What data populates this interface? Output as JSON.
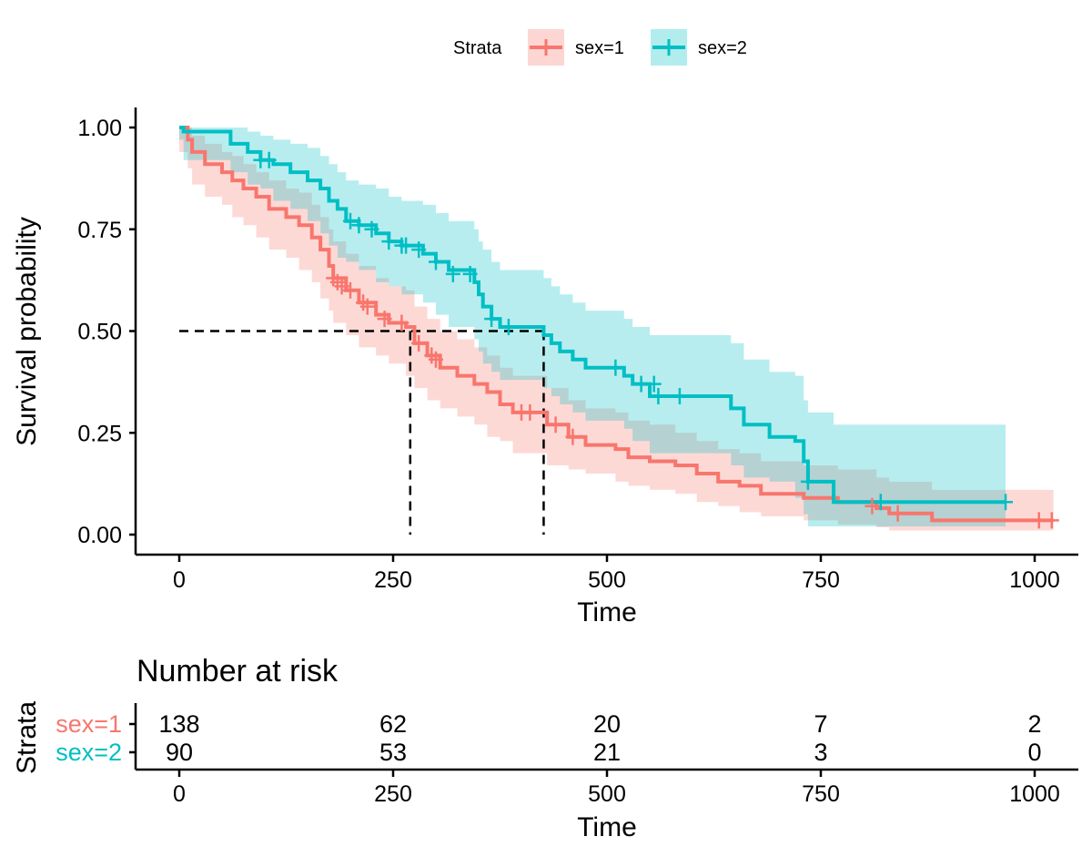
{
  "chart_data": {
    "type": "line",
    "subtype": "kaplan-meier step",
    "xlabel": "Time",
    "ylabel": "Survival probability",
    "xlim": [
      -30,
      1050
    ],
    "ylim": [
      0,
      1
    ],
    "xticks": [
      0,
      250,
      500,
      750,
      1000
    ],
    "xtick_labels": [
      "0",
      "250",
      "500",
      "750",
      "1000"
    ],
    "yticks": [
      0,
      0.25,
      0.5,
      0.75,
      1.0
    ],
    "ytick_labels": [
      "0.00",
      "0.25",
      "0.50",
      "0.75",
      "1.00"
    ],
    "grid": false,
    "legend": {
      "title": "Strata",
      "placement": "top",
      "entries": [
        "sex=1",
        "sex=2"
      ]
    },
    "median_lines": {
      "y": 0.5,
      "x": [
        270,
        426
      ]
    },
    "series": [
      {
        "name": "sex=1",
        "color": "#F8766D",
        "fill": "#F8766D",
        "steps": [
          [
            0,
            1.0
          ],
          [
            10,
            0.97
          ],
          [
            15,
            0.94
          ],
          [
            30,
            0.91
          ],
          [
            50,
            0.89
          ],
          [
            62,
            0.87
          ],
          [
            75,
            0.85
          ],
          [
            90,
            0.83
          ],
          [
            105,
            0.8
          ],
          [
            125,
            0.78
          ],
          [
            140,
            0.76
          ],
          [
            155,
            0.73
          ],
          [
            165,
            0.7
          ],
          [
            175,
            0.66
          ],
          [
            180,
            0.63
          ],
          [
            195,
            0.6
          ],
          [
            210,
            0.57
          ],
          [
            230,
            0.54
          ],
          [
            245,
            0.52
          ],
          [
            265,
            0.51
          ],
          [
            275,
            0.47
          ],
          [
            290,
            0.44
          ],
          [
            305,
            0.41
          ],
          [
            325,
            0.39
          ],
          [
            345,
            0.37
          ],
          [
            360,
            0.35
          ],
          [
            375,
            0.32
          ],
          [
            390,
            0.3
          ],
          [
            430,
            0.27
          ],
          [
            455,
            0.24
          ],
          [
            475,
            0.22
          ],
          [
            510,
            0.21
          ],
          [
            525,
            0.19
          ],
          [
            550,
            0.18
          ],
          [
            580,
            0.17
          ],
          [
            605,
            0.15
          ],
          [
            630,
            0.13
          ],
          [
            655,
            0.12
          ],
          [
            680,
            0.1
          ],
          [
            730,
            0.09
          ],
          [
            770,
            0.08
          ],
          [
            815,
            0.065
          ],
          [
            830,
            0.052
          ],
          [
            880,
            0.035
          ],
          [
            1022,
            0.035
          ]
        ],
        "lower": [
          [
            0,
            1.0
          ],
          [
            10,
            0.94
          ],
          [
            15,
            0.9
          ],
          [
            30,
            0.86
          ],
          [
            50,
            0.83
          ],
          [
            62,
            0.81
          ],
          [
            75,
            0.78
          ],
          [
            90,
            0.76
          ],
          [
            105,
            0.73
          ],
          [
            125,
            0.7
          ],
          [
            140,
            0.68
          ],
          [
            155,
            0.65
          ],
          [
            165,
            0.62
          ],
          [
            175,
            0.58
          ],
          [
            180,
            0.55
          ],
          [
            195,
            0.52
          ],
          [
            210,
            0.49
          ],
          [
            230,
            0.46
          ],
          [
            245,
            0.44
          ],
          [
            265,
            0.42
          ],
          [
            275,
            0.39
          ],
          [
            290,
            0.36
          ],
          [
            305,
            0.33
          ],
          [
            325,
            0.31
          ],
          [
            345,
            0.29
          ],
          [
            360,
            0.27
          ],
          [
            375,
            0.24
          ],
          [
            390,
            0.23
          ],
          [
            430,
            0.2
          ],
          [
            455,
            0.17
          ],
          [
            475,
            0.16
          ],
          [
            510,
            0.15
          ],
          [
            525,
            0.13
          ],
          [
            550,
            0.12
          ],
          [
            580,
            0.11
          ],
          [
            605,
            0.1
          ],
          [
            630,
            0.08
          ],
          [
            655,
            0.07
          ],
          [
            680,
            0.055
          ],
          [
            730,
            0.045
          ],
          [
            770,
            0.035
          ],
          [
            815,
            0.025
          ],
          [
            830,
            0.018
          ],
          [
            880,
            0.01
          ],
          [
            1022,
            0.01
          ]
        ],
        "upper": [
          [
            0,
            1.0
          ],
          [
            10,
            1.0
          ],
          [
            15,
            0.98
          ],
          [
            30,
            0.96
          ],
          [
            50,
            0.94
          ],
          [
            62,
            0.93
          ],
          [
            75,
            0.91
          ],
          [
            90,
            0.89
          ],
          [
            105,
            0.87
          ],
          [
            125,
            0.85
          ],
          [
            140,
            0.84
          ],
          [
            155,
            0.81
          ],
          [
            165,
            0.78
          ],
          [
            175,
            0.75
          ],
          [
            180,
            0.72
          ],
          [
            195,
            0.69
          ],
          [
            210,
            0.66
          ],
          [
            230,
            0.63
          ],
          [
            245,
            0.61
          ],
          [
            265,
            0.6
          ],
          [
            275,
            0.56
          ],
          [
            290,
            0.53
          ],
          [
            305,
            0.5
          ],
          [
            325,
            0.48
          ],
          [
            345,
            0.46
          ],
          [
            360,
            0.44
          ],
          [
            375,
            0.41
          ],
          [
            390,
            0.39
          ],
          [
            430,
            0.36
          ],
          [
            455,
            0.33
          ],
          [
            475,
            0.31
          ],
          [
            510,
            0.3
          ],
          [
            525,
            0.28
          ],
          [
            550,
            0.27
          ],
          [
            580,
            0.25
          ],
          [
            605,
            0.23
          ],
          [
            630,
            0.21
          ],
          [
            655,
            0.2
          ],
          [
            680,
            0.18
          ],
          [
            730,
            0.17
          ],
          [
            770,
            0.16
          ],
          [
            815,
            0.14
          ],
          [
            830,
            0.13
          ],
          [
            880,
            0.11
          ],
          [
            1022,
            0.11
          ]
        ],
        "censored": [
          [
            180,
            0.63
          ],
          [
            185,
            0.62
          ],
          [
            190,
            0.61
          ],
          [
            200,
            0.6
          ],
          [
            215,
            0.57
          ],
          [
            220,
            0.56
          ],
          [
            240,
            0.53
          ],
          [
            260,
            0.52
          ],
          [
            280,
            0.47
          ],
          [
            295,
            0.44
          ],
          [
            300,
            0.43
          ],
          [
            400,
            0.3
          ],
          [
            410,
            0.3
          ],
          [
            440,
            0.27
          ],
          [
            460,
            0.24
          ],
          [
            810,
            0.07
          ],
          [
            840,
            0.052
          ],
          [
            1005,
            0.035
          ],
          [
            1020,
            0.035
          ]
        ]
      },
      {
        "name": "sex=2",
        "color": "#00BFC4",
        "fill": "#00BFC4",
        "steps": [
          [
            0,
            1.0
          ],
          [
            5,
            0.99
          ],
          [
            60,
            0.96
          ],
          [
            80,
            0.94
          ],
          [
            95,
            0.92
          ],
          [
            110,
            0.91
          ],
          [
            130,
            0.89
          ],
          [
            150,
            0.87
          ],
          [
            165,
            0.85
          ],
          [
            175,
            0.82
          ],
          [
            185,
            0.8
          ],
          [
            195,
            0.77
          ],
          [
            210,
            0.76
          ],
          [
            230,
            0.74
          ],
          [
            245,
            0.72
          ],
          [
            260,
            0.71
          ],
          [
            285,
            0.69
          ],
          [
            300,
            0.67
          ],
          [
            315,
            0.65
          ],
          [
            345,
            0.62
          ],
          [
            350,
            0.59
          ],
          [
            355,
            0.56
          ],
          [
            365,
            0.53
          ],
          [
            375,
            0.51
          ],
          [
            426,
            0.49
          ],
          [
            435,
            0.47
          ],
          [
            445,
            0.45
          ],
          [
            460,
            0.43
          ],
          [
            475,
            0.41
          ],
          [
            520,
            0.39
          ],
          [
            530,
            0.37
          ],
          [
            550,
            0.34
          ],
          [
            645,
            0.31
          ],
          [
            660,
            0.27
          ],
          [
            690,
            0.24
          ],
          [
            720,
            0.23
          ],
          [
            730,
            0.18
          ],
          [
            735,
            0.13
          ],
          [
            765,
            0.08
          ],
          [
            966,
            0.08
          ]
        ],
        "lower": [
          [
            0,
            1.0
          ],
          [
            5,
            0.97
          ],
          [
            60,
            0.92
          ],
          [
            80,
            0.89
          ],
          [
            95,
            0.86
          ],
          [
            110,
            0.85
          ],
          [
            130,
            0.82
          ],
          [
            150,
            0.8
          ],
          [
            165,
            0.77
          ],
          [
            175,
            0.74
          ],
          [
            185,
            0.71
          ],
          [
            195,
            0.68
          ],
          [
            210,
            0.67
          ],
          [
            230,
            0.65
          ],
          [
            245,
            0.62
          ],
          [
            260,
            0.61
          ],
          [
            285,
            0.59
          ],
          [
            300,
            0.57
          ],
          [
            315,
            0.54
          ],
          [
            345,
            0.51
          ],
          [
            350,
            0.48
          ],
          [
            355,
            0.45
          ],
          [
            365,
            0.42
          ],
          [
            375,
            0.4
          ],
          [
            426,
            0.38
          ],
          [
            435,
            0.36
          ],
          [
            445,
            0.34
          ],
          [
            460,
            0.32
          ],
          [
            475,
            0.3
          ],
          [
            520,
            0.28
          ],
          [
            530,
            0.26
          ],
          [
            550,
            0.23
          ],
          [
            645,
            0.2
          ],
          [
            660,
            0.17
          ],
          [
            690,
            0.14
          ],
          [
            720,
            0.13
          ],
          [
            730,
            0.09
          ],
          [
            735,
            0.05
          ],
          [
            765,
            0.02
          ],
          [
            966,
            0.02
          ]
        ],
        "upper": [
          [
            0,
            1.0
          ],
          [
            5,
            1.0
          ],
          [
            60,
            1.0
          ],
          [
            80,
            0.99
          ],
          [
            95,
            0.98
          ],
          [
            110,
            0.97
          ],
          [
            130,
            0.96
          ],
          [
            150,
            0.95
          ],
          [
            165,
            0.93
          ],
          [
            175,
            0.91
          ],
          [
            185,
            0.89
          ],
          [
            195,
            0.87
          ],
          [
            210,
            0.86
          ],
          [
            230,
            0.85
          ],
          [
            245,
            0.83
          ],
          [
            260,
            0.82
          ],
          [
            285,
            0.81
          ],
          [
            300,
            0.79
          ],
          [
            315,
            0.77
          ],
          [
            345,
            0.75
          ],
          [
            350,
            0.72
          ],
          [
            355,
            0.7
          ],
          [
            365,
            0.67
          ],
          [
            375,
            0.65
          ],
          [
            426,
            0.63
          ],
          [
            435,
            0.61
          ],
          [
            445,
            0.59
          ],
          [
            460,
            0.57
          ],
          [
            475,
            0.55
          ],
          [
            520,
            0.53
          ],
          [
            530,
            0.51
          ],
          [
            550,
            0.49
          ],
          [
            645,
            0.47
          ],
          [
            660,
            0.43
          ],
          [
            690,
            0.4
          ],
          [
            720,
            0.39
          ],
          [
            730,
            0.33
          ],
          [
            735,
            0.3
          ],
          [
            765,
            0.27
          ],
          [
            966,
            0.27
          ]
        ],
        "censored": [
          [
            95,
            0.92
          ],
          [
            105,
            0.92
          ],
          [
            200,
            0.77
          ],
          [
            210,
            0.76
          ],
          [
            225,
            0.75
          ],
          [
            245,
            0.72
          ],
          [
            260,
            0.71
          ],
          [
            265,
            0.71
          ],
          [
            280,
            0.7
          ],
          [
            300,
            0.67
          ],
          [
            320,
            0.64
          ],
          [
            340,
            0.64
          ],
          [
            365,
            0.53
          ],
          [
            385,
            0.51
          ],
          [
            510,
            0.41
          ],
          [
            540,
            0.37
          ],
          [
            555,
            0.37
          ],
          [
            560,
            0.34
          ],
          [
            585,
            0.34
          ],
          [
            735,
            0.13
          ],
          [
            820,
            0.08
          ],
          [
            966,
            0.08
          ]
        ]
      }
    ],
    "risk_table": {
      "title": "Number at risk",
      "ylabel": "Strata",
      "xlabel": "Time",
      "times": [
        0,
        250,
        500,
        750,
        1000
      ],
      "time_labels": [
        "0",
        "250",
        "500",
        "750",
        "1000"
      ],
      "rows": [
        {
          "label": "sex=1",
          "color": "#F8766D",
          "values": [
            "138",
            "62",
            "20",
            "7",
            "2"
          ]
        },
        {
          "label": "sex=2",
          "color": "#00BFC4",
          "values": [
            "90",
            "53",
            "21",
            "3",
            "0"
          ]
        }
      ]
    }
  }
}
